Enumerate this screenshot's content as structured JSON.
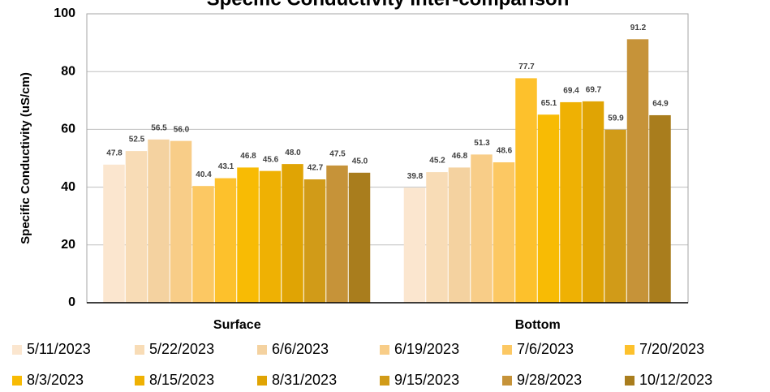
{
  "chart_data": {
    "type": "bar",
    "title": "Specific Conductivity Inter-comparison",
    "y_label": "Specific Conductivity (uS/cm)",
    "categories": [
      "Surface",
      "Bottom"
    ],
    "series": [
      {
        "name": "5/11/2023",
        "color": "#fbe6cf",
        "values": [
          47.8,
          39.8
        ],
        "value_labels": [
          "47.8",
          "39.8"
        ]
      },
      {
        "name": "5/22/2023",
        "color": "#f8dcb6",
        "values": [
          52.5,
          45.2
        ],
        "value_labels": [
          "52.5",
          "45.2"
        ]
      },
      {
        "name": "6/6/2023",
        "color": "#f4d2a0",
        "values": [
          56.5,
          46.8
        ],
        "value_labels": [
          "56.5",
          "46.8"
        ]
      },
      {
        "name": "6/19/2023",
        "color": "#f8cd88",
        "values": [
          56.0,
          51.3
        ],
        "value_labels": [
          "56.0",
          "51.3"
        ]
      },
      {
        "name": "7/6/2023",
        "color": "#fcc863",
        "values": [
          40.4,
          48.6
        ],
        "value_labels": [
          "40.4",
          "48.6"
        ]
      },
      {
        "name": "7/20/2023",
        "color": "#fdc12c",
        "values": [
          43.1,
          77.7
        ],
        "value_labels": [
          "43.1",
          "77.7"
        ]
      },
      {
        "name": "8/3/2023",
        "color": "#f8bb04",
        "values": [
          46.8,
          65.1
        ],
        "value_labels": [
          "46.8",
          "65.1"
        ]
      },
      {
        "name": "8/15/2023",
        "color": "#efb103",
        "values": [
          45.6,
          69.4
        ],
        "value_labels": [
          "45.6",
          "69.4"
        ]
      },
      {
        "name": "8/31/2023",
        "color": "#e0a404",
        "values": [
          48.0,
          69.7
        ],
        "value_labels": [
          "48.0",
          "69.7"
        ]
      },
      {
        "name": "9/15/2023",
        "color": "#d19b18",
        "values": [
          42.7,
          59.9
        ],
        "value_labels": [
          "42.7",
          "59.9"
        ]
      },
      {
        "name": "9/28/2023",
        "color": "#c69339",
        "values": [
          47.5,
          91.2
        ],
        "value_labels": [
          "47.5",
          "91.2"
        ]
      },
      {
        "name": "10/12/2023",
        "color": "#a97d1d",
        "values": [
          45.0,
          64.9
        ],
        "value_labels": [
          "45.0",
          "64.9"
        ]
      }
    ],
    "ylim": [
      0,
      100
    ],
    "yticks": [
      0,
      20,
      40,
      60,
      80,
      100
    ],
    "grid": true,
    "legend": "bottom"
  }
}
